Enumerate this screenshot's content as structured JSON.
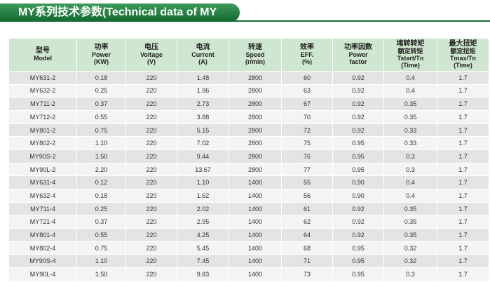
{
  "header": {
    "title": "MY系列技术参数(Technical data of MY series)"
  },
  "table": {
    "header": [
      [
        "型号",
        "Model"
      ],
      [
        "功率",
        "Power",
        "(KW)"
      ],
      [
        "电压",
        "Voltage",
        "(V)"
      ],
      [
        "电流",
        "Current",
        "(A)"
      ],
      [
        "转速",
        "Speed",
        "(r/min)"
      ],
      [
        "效率",
        "EFF.",
        "(%)"
      ],
      [
        "功率因数",
        "Power",
        "factor"
      ],
      [
        "堵转转矩",
        "额定转矩",
        "Tstart/Tn",
        "(Time)"
      ],
      [
        "最大扭矩",
        "额定扭矩",
        "Tmax/Tn",
        "(Time)"
      ]
    ],
    "rows": [
      [
        "MY631-2",
        "0.18",
        "220",
        "1.48",
        "2800",
        "60",
        "0.92",
        "0.4",
        "1.7"
      ],
      [
        "MY632-2",
        "0.25",
        "220",
        "1.96",
        "2800",
        "63",
        "0.92",
        "0.4",
        "1.7"
      ],
      [
        "MY711-2",
        "0.37",
        "220",
        "2.73",
        "2800",
        "67",
        "0.92",
        "0.35",
        "1.7"
      ],
      [
        "MY712-2",
        "0.55",
        "220",
        "3.88",
        "2800",
        "70",
        "0.92",
        "0.35",
        "1.7"
      ],
      [
        "MY801-2",
        "0.75",
        "220",
        "5.15",
        "2800",
        "72",
        "0.92",
        "0.33",
        "1.7"
      ],
      [
        "MY802-2",
        "1.10",
        "220",
        "7.02",
        "2800",
        "75",
        "0.95",
        "0.33",
        "1.7"
      ],
      [
        "MY90S-2",
        "1.50",
        "220",
        "9.44",
        "2800",
        "76",
        "0.95",
        "0.3",
        "1.7"
      ],
      [
        "MY90L-2",
        "2.20",
        "220",
        "13.67",
        "2800",
        "77",
        "0.95",
        "0.3",
        "1.7"
      ],
      [
        "MY631-4",
        "0.12",
        "220",
        "1.10",
        "1400",
        "55",
        "0.90",
        "0.4",
        "1.7"
      ],
      [
        "MY632-4",
        "0.18",
        "220",
        "1.62",
        "1400",
        "56",
        "0.90",
        "0.4",
        "1.7"
      ],
      [
        "MY711-4",
        "0.25",
        "220",
        "2.02",
        "1400",
        "61",
        "0.92",
        "0.35",
        "1.7"
      ],
      [
        "MY721-4",
        "0.37",
        "220",
        "2.95",
        "1400",
        "62",
        "0.92",
        "0.35",
        "1.7"
      ],
      [
        "MY801-4",
        "0.55",
        "220",
        "4.25",
        "1400",
        "64",
        "0.92",
        "0.35",
        "1.7"
      ],
      [
        "MY802-4",
        "0.75",
        "220",
        "5.45",
        "1400",
        "68",
        "0.95",
        "0.32",
        "1.7"
      ],
      [
        "MY90S-4",
        "1.10",
        "220",
        "7.45",
        "1400",
        "71",
        "0.95",
        "0.32",
        "1.7"
      ],
      [
        "MY90L-4",
        "1.50",
        "220",
        "9.83",
        "1400",
        "73",
        "0.95",
        "0.3",
        "1.7"
      ]
    ]
  }
}
